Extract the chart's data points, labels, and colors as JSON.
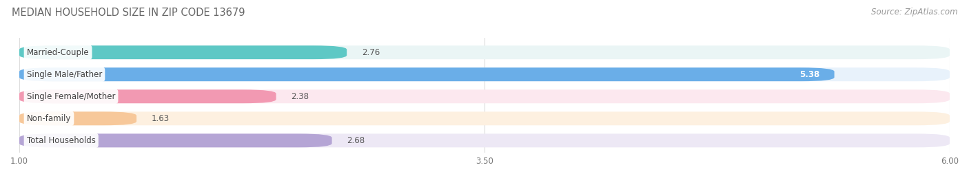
{
  "title": "MEDIAN HOUSEHOLD SIZE IN ZIP CODE 13679",
  "source": "Source: ZipAtlas.com",
  "categories": [
    "Married-Couple",
    "Single Male/Father",
    "Single Female/Mother",
    "Non-family",
    "Total Households"
  ],
  "values": [
    2.76,
    5.38,
    2.38,
    1.63,
    2.68
  ],
  "bar_colors": [
    "#5ec8c5",
    "#6aaee8",
    "#f299b2",
    "#f7c89a",
    "#b5a5d5"
  ],
  "bar_bg_colors": [
    "#eaf5f5",
    "#e8f2fb",
    "#fce8ef",
    "#fdf0e0",
    "#ede8f5"
  ],
  "xlim": [
    1.0,
    6.0
  ],
  "xticks": [
    1.0,
    3.5,
    6.0
  ],
  "title_fontsize": 10.5,
  "source_fontsize": 8.5,
  "label_fontsize": 8.5,
  "value_fontsize": 8.5,
  "background_color": "#ffffff",
  "grid_color": "#dddddd"
}
